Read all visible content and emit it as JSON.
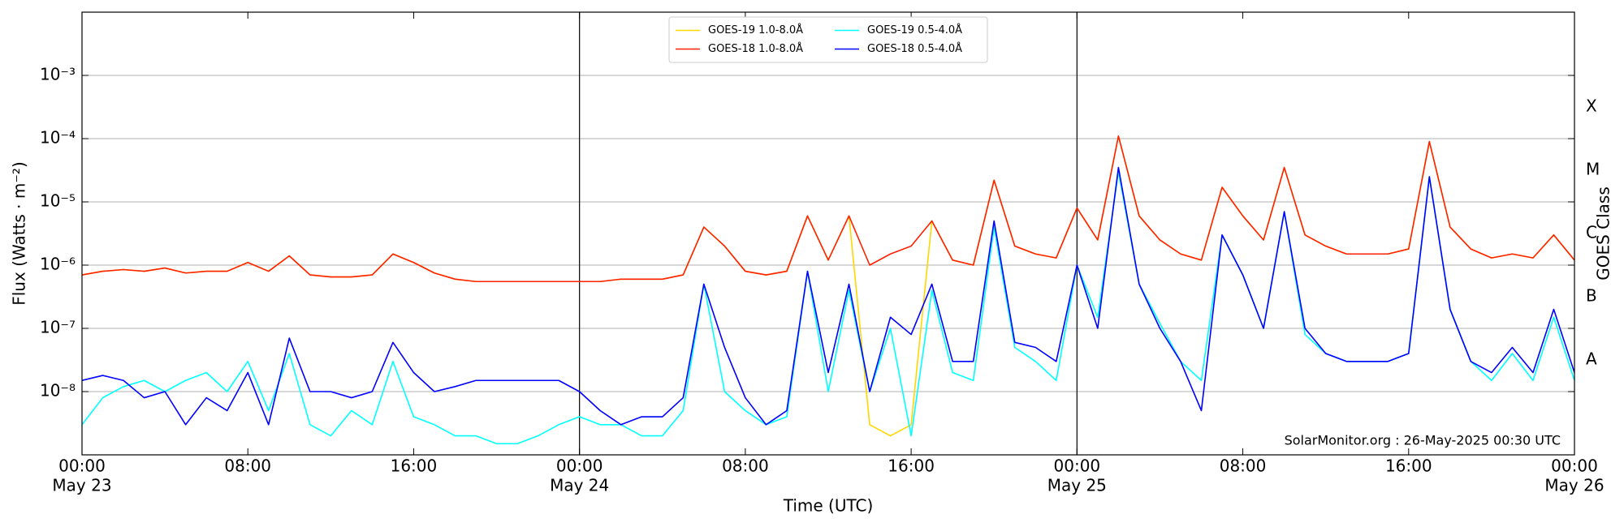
{
  "chart_data": {
    "type": "line",
    "x_label": "Time (UTC)",
    "y_label": "Flux (Watts · m⁻²)",
    "y2_label": "GOES Class",
    "annotation": "SolarMonitor.org : 26-May-2025 00:30 UTC",
    "log_y": true,
    "grid": "y",
    "legend": "upper center",
    "legend_columns": 2,
    "xlim": [
      0,
      72
    ],
    "ylim": [
      1e-09,
      0.01
    ],
    "xticks": [
      {
        "value": 0,
        "label": "00:00",
        "sublabel": "May 23"
      },
      {
        "value": 8,
        "label": "08:00"
      },
      {
        "value": 16,
        "label": "16:00"
      },
      {
        "value": 24,
        "label": "00:00",
        "sublabel": "May 24"
      },
      {
        "value": 32,
        "label": "08:00"
      },
      {
        "value": 40,
        "label": "16:00"
      },
      {
        "value": 48,
        "label": "00:00",
        "sublabel": "May 25"
      },
      {
        "value": 56,
        "label": "08:00"
      },
      {
        "value": 64,
        "label": "16:00"
      },
      {
        "value": 72,
        "label": "00:00",
        "sublabel": "May 26"
      }
    ],
    "yticks": [
      {
        "value": 1e-08,
        "label": "10⁻⁸"
      },
      {
        "value": 1e-07,
        "label": "10⁻⁷"
      },
      {
        "value": 1e-06,
        "label": "10⁻⁶"
      },
      {
        "value": 1e-05,
        "label": "10⁻⁵"
      },
      {
        "value": 0.0001,
        "label": "10⁻⁴"
      },
      {
        "value": 0.001,
        "label": "10⁻³"
      }
    ],
    "y2_classes": [
      {
        "value": 1e-08,
        "label": "A"
      },
      {
        "value": 1e-07,
        "label": "B"
      },
      {
        "value": 1e-06,
        "label": "C"
      },
      {
        "value": 1e-05,
        "label": "M"
      },
      {
        "value": 0.0001,
        "label": "X"
      }
    ],
    "vlines": [
      24,
      48
    ],
    "x": [
      0,
      1,
      2,
      3,
      4,
      5,
      6,
      7,
      8,
      9,
      10,
      11,
      12,
      13,
      14,
      15,
      16,
      17,
      18,
      19,
      20,
      21,
      22,
      23,
      24,
      25,
      26,
      27,
      28,
      29,
      30,
      31,
      32,
      33,
      34,
      35,
      36,
      37,
      38,
      39,
      40,
      41,
      42,
      43,
      44,
      45,
      46,
      47,
      48,
      49,
      50,
      51,
      52,
      53,
      54,
      55,
      56,
      57,
      58,
      59,
      60,
      61,
      62,
      63,
      64,
      65,
      66,
      67,
      68,
      69,
      70,
      71,
      72
    ],
    "series": [
      {
        "name": "GOES-19 1.0-8.0Å",
        "color": "#ffd700",
        "values": [
          7e-07,
          8e-07,
          8.5e-07,
          8e-07,
          9e-07,
          7.5e-07,
          8e-07,
          8e-07,
          1.1e-06,
          8e-07,
          1.4e-06,
          7e-07,
          6.5e-07,
          6.5e-07,
          7e-07,
          1.5e-06,
          1.1e-06,
          7.5e-07,
          6e-07,
          5.5e-07,
          5.5e-07,
          5.5e-07,
          5.5e-07,
          5.5e-07,
          5.5e-07,
          5.5e-07,
          6e-07,
          6e-07,
          6e-07,
          7e-07,
          4e-06,
          2e-06,
          8e-07,
          7e-07,
          8e-07,
          6e-06,
          1.2e-06,
          6e-06,
          3e-09,
          2e-09,
          3e-09,
          5e-06,
          1.2e-06,
          1e-06,
          2.2e-05,
          2e-06,
          1.5e-06,
          1.3e-06,
          8e-06,
          2.5e-06,
          0.00011,
          6e-06,
          2.5e-06,
          1.5e-06,
          1.2e-06,
          1.7e-05,
          6e-06,
          2.5e-06,
          3.5e-05,
          3e-06,
          2e-06,
          1.5e-06,
          1.5e-06,
          1.5e-06,
          1.8e-06,
          9e-05,
          4e-06,
          1.8e-06,
          1.3e-06,
          1.5e-06,
          1.3e-06,
          3e-06,
          1.2e-06
        ]
      },
      {
        "name": "GOES-18 1.0-8.0Å",
        "color": "#ff2000",
        "values": [
          7e-07,
          8e-07,
          8.5e-07,
          8e-07,
          9e-07,
          7.5e-07,
          8e-07,
          8e-07,
          1.1e-06,
          8e-07,
          1.4e-06,
          7e-07,
          6.5e-07,
          6.5e-07,
          7e-07,
          1.5e-06,
          1.1e-06,
          7.5e-07,
          6e-07,
          5.5e-07,
          5.5e-07,
          5.5e-07,
          5.5e-07,
          5.5e-07,
          5.5e-07,
          5.5e-07,
          6e-07,
          6e-07,
          6e-07,
          7e-07,
          4e-06,
          2e-06,
          8e-07,
          7e-07,
          8e-07,
          6e-06,
          1.2e-06,
          6e-06,
          1e-06,
          1.5e-06,
          2e-06,
          5e-06,
          1.2e-06,
          1e-06,
          2.2e-05,
          2e-06,
          1.5e-06,
          1.3e-06,
          8e-06,
          2.5e-06,
          0.00011,
          6e-06,
          2.5e-06,
          1.5e-06,
          1.2e-06,
          1.7e-05,
          6e-06,
          2.5e-06,
          3.5e-05,
          3e-06,
          2e-06,
          1.5e-06,
          1.5e-06,
          1.5e-06,
          1.8e-06,
          9e-05,
          4e-06,
          1.8e-06,
          1.3e-06,
          1.5e-06,
          1.3e-06,
          3e-06,
          1.2e-06
        ]
      },
      {
        "name": "GOES-19 0.5-4.0Å",
        "color": "#00ffff",
        "values": [
          3e-09,
          8e-09,
          1.2e-08,
          1.5e-08,
          1e-08,
          1.5e-08,
          2e-08,
          1e-08,
          3e-08,
          5e-09,
          4e-08,
          3e-09,
          2e-09,
          5e-09,
          3e-09,
          3e-08,
          4e-09,
          3e-09,
          2e-09,
          2e-09,
          1.5e-09,
          1.5e-09,
          2e-09,
          3e-09,
          4e-09,
          3e-09,
          3e-09,
          2e-09,
          2e-09,
          5e-09,
          5e-07,
          1e-08,
          5e-09,
          3e-09,
          4e-09,
          8e-07,
          1e-08,
          4e-07,
          1e-08,
          1e-07,
          2e-09,
          4e-07,
          2e-08,
          1.5e-08,
          4e-06,
          5e-08,
          3e-08,
          1.5e-08,
          1e-06,
          1.5e-07,
          3e-05,
          5e-07,
          1.2e-07,
          3e-08,
          1.5e-08,
          3e-06,
          7e-07,
          1e-07,
          7e-06,
          8e-08,
          4e-08,
          3e-08,
          3e-08,
          3e-08,
          4e-08,
          2.5e-05,
          2e-07,
          3e-08,
          1.5e-08,
          4e-08,
          1.5e-08,
          1.5e-07,
          1.5e-08
        ]
      },
      {
        "name": "GOES-18 0.5-4.0Å",
        "color": "#0000ff",
        "values": [
          1.5e-08,
          1.8e-08,
          1.5e-08,
          8e-09,
          1e-08,
          3e-09,
          8e-09,
          5e-09,
          2e-08,
          3e-09,
          7e-08,
          1e-08,
          1e-08,
          8e-09,
          1e-08,
          6e-08,
          2e-08,
          1e-08,
          1.2e-08,
          1.5e-08,
          1.5e-08,
          1.5e-08,
          1.5e-08,
          1.5e-08,
          1e-08,
          5e-09,
          3e-09,
          4e-09,
          4e-09,
          8e-09,
          5e-07,
          5e-08,
          8e-09,
          3e-09,
          5e-09,
          8e-07,
          2e-08,
          5e-07,
          1e-08,
          1.5e-07,
          8e-08,
          5e-07,
          3e-08,
          3e-08,
          5e-06,
          6e-08,
          5e-08,
          3e-08,
          1e-06,
          1e-07,
          3.5e-05,
          5e-07,
          1e-07,
          3e-08,
          5e-09,
          3e-06,
          7e-07,
          1e-07,
          7e-06,
          1e-07,
          4e-08,
          3e-08,
          3e-08,
          3e-08,
          4e-08,
          2.5e-05,
          2e-07,
          3e-08,
          2e-08,
          5e-08,
          2e-08,
          2e-07,
          2e-08
        ]
      }
    ]
  }
}
